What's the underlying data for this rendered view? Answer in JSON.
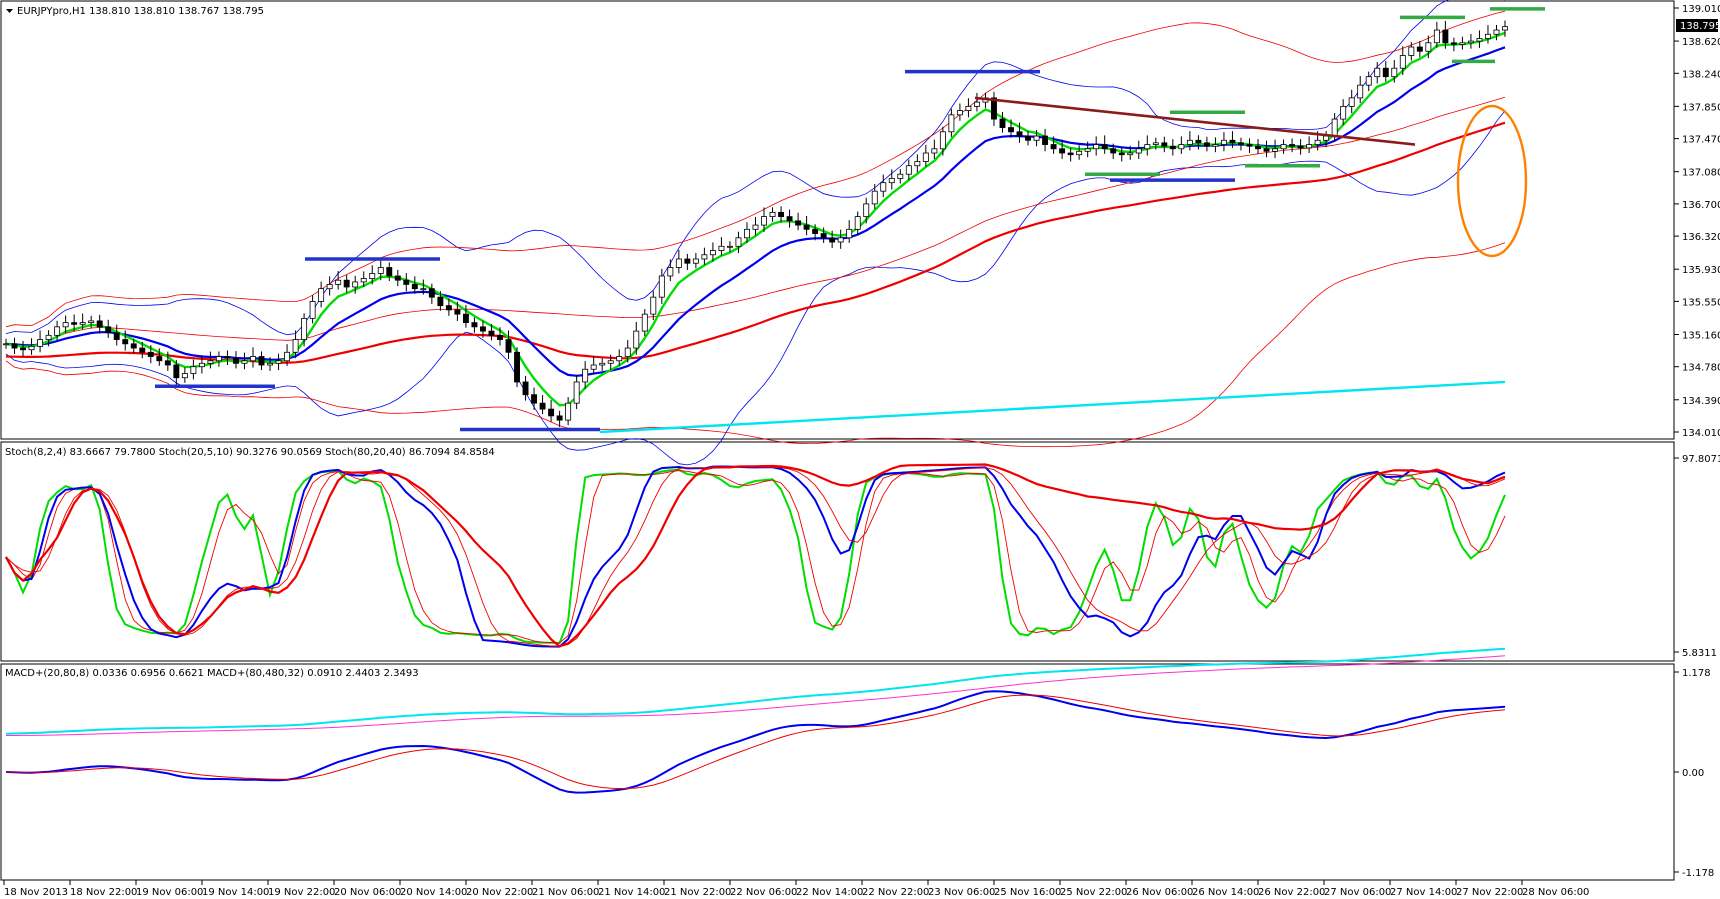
{
  "chart_data": [
    {
      "type": "candlestick",
      "title": "EURJPYpro,H1",
      "ohlc_readout": "138.810 138.810 138.767 138.795",
      "last_price": "138.795",
      "y_ticks": [
        "139.010",
        "138.620",
        "138.240",
        "137.850",
        "137.470",
        "137.080",
        "136.700",
        "136.320",
        "135.930",
        "135.550",
        "135.160",
        "134.780",
        "134.390",
        "134.010"
      ],
      "ylim": [
        134.01,
        139.01
      ],
      "close_series": [
        135.05,
        135.0,
        134.98,
        135.02,
        135.1,
        135.15,
        135.25,
        135.3,
        135.28,
        135.3,
        135.32,
        135.25,
        135.18,
        135.1,
        135.05,
        135.0,
        134.95,
        134.9,
        134.85,
        134.8,
        134.65,
        134.7,
        134.78,
        134.82,
        134.85,
        134.9,
        134.88,
        134.82,
        134.85,
        134.9,
        134.8,
        134.82,
        134.85,
        134.95,
        135.1,
        135.35,
        135.55,
        135.7,
        135.75,
        135.8,
        135.72,
        135.78,
        135.82,
        135.88,
        135.95,
        135.85,
        135.8,
        135.75,
        135.7,
        135.7,
        135.6,
        135.5,
        135.45,
        135.4,
        135.3,
        135.25,
        135.2,
        135.15,
        135.1,
        134.95,
        134.6,
        134.45,
        134.35,
        134.28,
        134.2,
        134.15,
        134.35,
        134.6,
        134.75,
        134.8,
        134.82,
        134.85,
        134.9,
        135.0,
        135.2,
        135.4,
        135.6,
        135.85,
        135.95,
        136.05,
        136.0,
        136.05,
        136.1,
        136.15,
        136.2,
        136.2,
        136.3,
        136.4,
        136.45,
        136.55,
        136.6,
        136.55,
        136.5,
        136.45,
        136.4,
        136.35,
        136.3,
        136.25,
        136.3,
        136.4,
        136.55,
        136.7,
        136.85,
        136.95,
        137.0,
        137.05,
        137.15,
        137.2,
        137.3,
        137.35,
        137.55,
        137.75,
        137.8,
        137.85,
        137.9,
        137.95,
        137.7,
        137.6,
        137.55,
        137.5,
        137.45,
        137.5,
        137.4,
        137.35,
        137.3,
        137.28,
        137.32,
        137.35,
        137.4,
        137.35,
        137.3,
        137.28,
        137.3,
        137.35,
        137.4,
        137.42,
        137.38,
        137.35,
        137.4,
        137.45,
        137.42,
        137.38,
        137.4,
        137.45,
        137.42,
        137.4,
        137.38,
        137.35,
        137.32,
        137.35,
        137.4,
        137.38,
        137.36,
        137.4,
        137.45,
        137.5,
        137.7,
        137.85,
        137.95,
        138.1,
        138.2,
        138.3,
        138.2,
        138.3,
        138.45,
        138.55,
        138.5,
        138.6,
        138.75,
        138.6,
        138.58,
        138.6,
        138.62,
        138.65,
        138.7,
        138.75,
        138.79
      ],
      "annotations": [
        "blue horizontal levels",
        "green horizontal levels",
        "dark-red trendline",
        "orange ellipse"
      ]
    },
    {
      "type": "line",
      "title": "Stoch(8,2,4) 83.6667 79.7800  Stoch(20,5,10) 90.3276 90.0569  Stoch(80,20,40) 86.7094 84.8584",
      "y_ticks": [
        "97.8071",
        "5.8311"
      ],
      "ylim": [
        5.8311,
        97.8071
      ]
    },
    {
      "type": "line",
      "title": "MACD+(20,80,8) 0.0336 0.6956 0.6621  MACD+(80,480,32) 0.0910 2.4403 2.3493",
      "y_ticks": [
        "1.178",
        "0.00",
        "-1.178"
      ],
      "ylim": [
        -1.178,
        1.178
      ]
    }
  ],
  "x_labels": [
    "18 Nov 2013",
    "18 Nov 22:00",
    "19 Nov 06:00",
    "19 Nov 14:00",
    "19 Nov 22:00",
    "20 Nov 06:00",
    "20 Nov 14:00",
    "20 Nov 22:00",
    "21 Nov 06:00",
    "21 Nov 14:00",
    "21 Nov 22:00",
    "22 Nov 06:00",
    "22 Nov 14:00",
    "22 Nov 22:00",
    "23 Nov 06:00",
    "25 Nov 16:00",
    "25 Nov 22:00",
    "26 Nov 06:00",
    "26 Nov 14:00",
    "26 Nov 22:00",
    "27 Nov 06:00",
    "27 Nov 14:00",
    "27 Nov 22:00",
    "28 Nov 06:00"
  ],
  "colors": {
    "green": "#00dd00",
    "blue": "#0000ee",
    "red": "#ee0000",
    "cyan": "#00e5ee",
    "orange": "#ff8000",
    "dark_red": "#8b1a1a",
    "magenta": "#ff33cc"
  }
}
